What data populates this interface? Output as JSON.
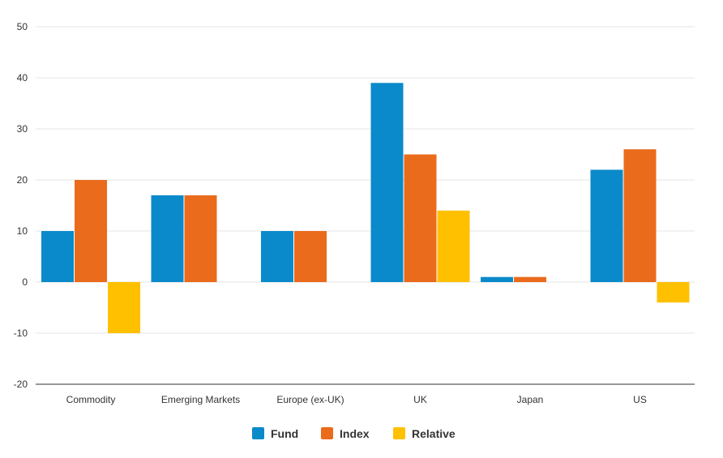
{
  "chart_data": {
    "type": "bar",
    "categories": [
      "Commodity",
      "Emerging Markets",
      "Europe (ex-UK)",
      "UK",
      "Japan",
      "US"
    ],
    "series": [
      {
        "name": "Fund",
        "color": "#0A8ACA",
        "values": [
          10,
          17,
          10,
          39,
          1,
          22
        ]
      },
      {
        "name": "Index",
        "color": "#EA6B1C",
        "values": [
          20,
          17,
          10,
          25,
          1,
          26
        ]
      },
      {
        "name": "Relative",
        "color": "#FFC000",
        "values": [
          -10,
          0,
          0,
          14,
          0,
          -4
        ]
      }
    ],
    "yticks": [
      50,
      40,
      30,
      20,
      10,
      0,
      -10,
      -20
    ],
    "ylim": [
      -20,
      50
    ],
    "grid": true,
    "legend_position": "bottom-center",
    "title": "",
    "xlabel": "",
    "ylabel": ""
  }
}
